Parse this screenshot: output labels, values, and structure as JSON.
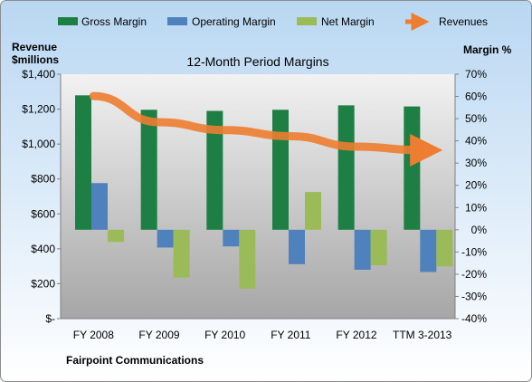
{
  "chart_data": {
    "type": "bar",
    "title": "12-Month Period Margins",
    "company": "Fairpoint Communications",
    "categories": [
      "FY 2008",
      "FY 2009",
      "FY 2010",
      "FY 2011",
      "FY 2012",
      "TTM 3-2013"
    ],
    "left_axis": {
      "label_line1": "Revenue",
      "label_line2": "$millions",
      "range": [
        0,
        1400
      ],
      "ticks": [
        0,
        200,
        400,
        600,
        800,
        1000,
        1200,
        1400
      ],
      "tick_labels": [
        "$-",
        "$200",
        "$400",
        "$600",
        "$800",
        "$1,000",
        "$1,200",
        "$1,400"
      ]
    },
    "right_axis": {
      "label": "Margin %",
      "range": [
        -40,
        70
      ],
      "ticks": [
        -40,
        -30,
        -20,
        -10,
        0,
        10,
        20,
        30,
        40,
        50,
        60,
        70
      ],
      "tick_labels": [
        "-40%",
        "-30%",
        "-20%",
        "-10%",
        "0%",
        "10%",
        "20%",
        "30%",
        "40%",
        "50%",
        "60%",
        "70%"
      ]
    },
    "series": [
      {
        "name": "Gross Margin",
        "axis": "right",
        "color": "#1e7f45",
        "values": [
          60.5,
          54,
          53.5,
          54,
          56,
          55.5
        ]
      },
      {
        "name": "Operating Margin",
        "axis": "right",
        "color": "#4f81bd",
        "values": [
          21,
          -8,
          -7.5,
          -15.5,
          -18,
          -19
        ]
      },
      {
        "name": "Net Margin",
        "axis": "right",
        "color": "#9bbb59",
        "values": [
          -5.5,
          -21.5,
          -26.5,
          17,
          -16,
          -16.5
        ]
      },
      {
        "name": "Revenues",
        "axis": "left",
        "type": "line",
        "color": "#ed7d31",
        "values": [
          1275,
          1125,
          1080,
          1045,
          985,
          965
        ]
      }
    ],
    "legend_position": "top",
    "grid": false
  },
  "colors": {
    "outer_background_top": "#b9d7f2",
    "outer_background_bottom": "#ffffff",
    "plot_top": "#f2f2f2",
    "plot_bottom": "#a6a6a6",
    "revenue_line": "#ed7d31"
  }
}
